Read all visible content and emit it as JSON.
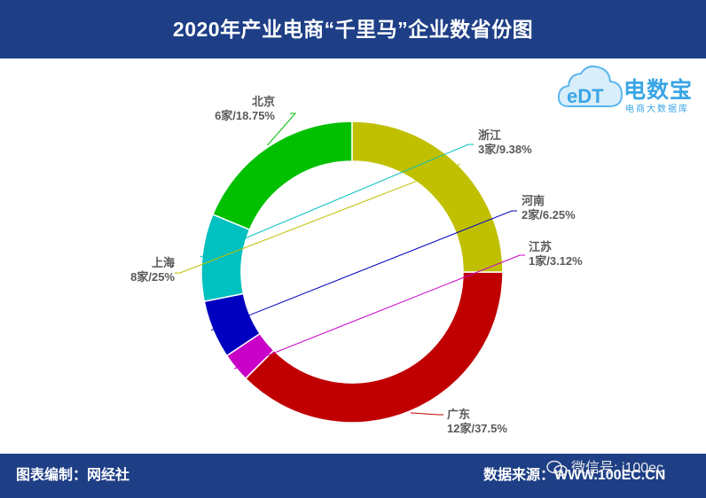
{
  "header": {
    "title": "2020年产业电商“千里马”企业数省份图"
  },
  "footer": {
    "left": "图表编制：网经社",
    "right": "数据来源：WWW.100EC.CN",
    "watermark": "微信号: i100ec"
  },
  "logo": {
    "text": "电数宝",
    "subtitle": "电商大数据库",
    "mark": "eDT"
  },
  "chart_data": {
    "type": "pie",
    "donut": true,
    "labels": [
      "广东",
      "江苏",
      "河南",
      "浙江",
      "北京",
      "上海"
    ],
    "values": [
      12,
      1,
      2,
      3,
      6,
      8
    ],
    "units": "家",
    "percent_labels": [
      "37.5%",
      "3.12%",
      "6.25%",
      "9.38%",
      "18.75%",
      "25%"
    ],
    "colors": [
      "#c00000",
      "#c800c8",
      "#0000c0",
      "#00c0c0",
      "#00c000",
      "#c0c000"
    ],
    "legend": "none"
  }
}
